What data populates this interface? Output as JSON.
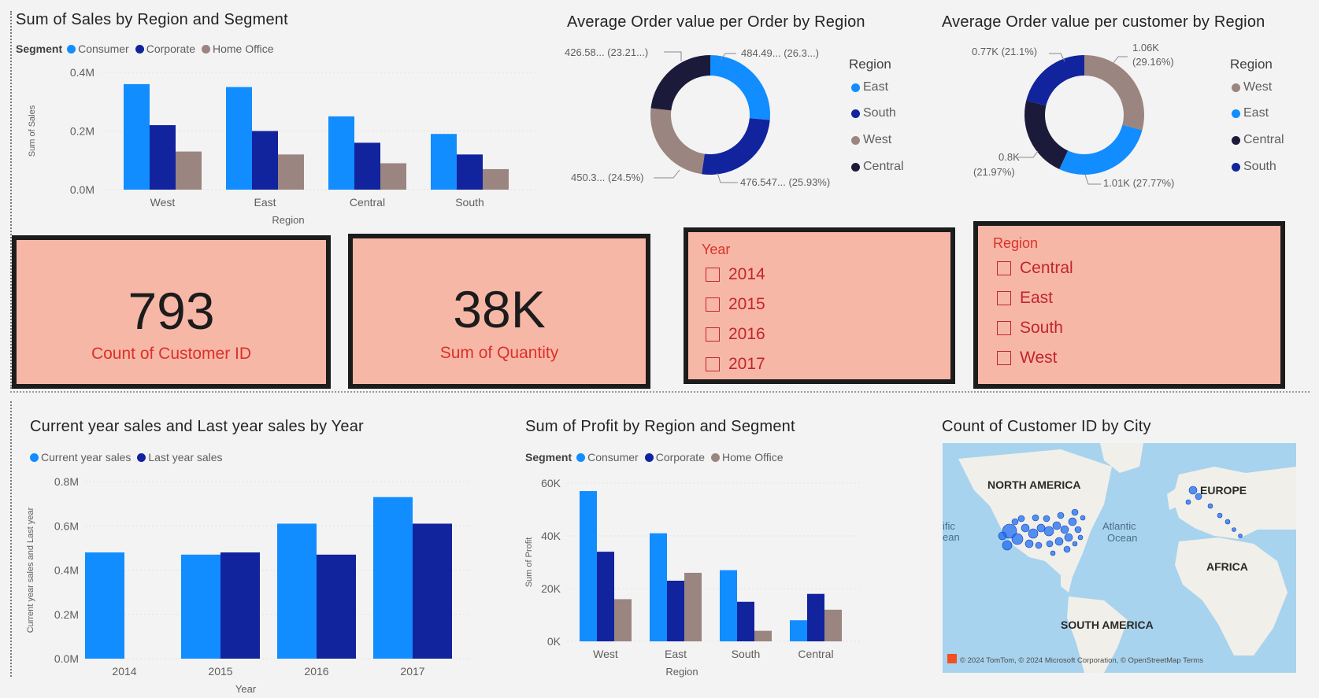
{
  "colors": {
    "consumer": "#118dff",
    "corporate": "#12239e",
    "home_office": "#9b8580",
    "central": "#1c1a3a",
    "current_year": "#118dff",
    "last_year": "#12239e",
    "card_bg": "#f7b7a7",
    "card_text_red": "#d9322a"
  },
  "sales_chart": {
    "title": "Sum of Sales by Region and Segment",
    "legend_label": "Segment",
    "legend": [
      "Consumer",
      "Corporate",
      "Home Office"
    ],
    "y_ticks": [
      "0.4M",
      "0.2M",
      "0.0M"
    ],
    "y_label": "Sum of Sales",
    "x_label": "Region"
  },
  "aov_order_chart": {
    "title": "Average Order value per Order by Region",
    "legend_title": "Region",
    "legend": [
      "East",
      "South",
      "West",
      "Central"
    ],
    "labels": {
      "top_left": "426.58... (23.21...)",
      "top_right": "484.49... (26.3...)",
      "bottom_left": "450.3... (24.5%)",
      "bottom_right": "476.547... (25.93%)"
    }
  },
  "aov_customer_chart": {
    "title": "Average Order value per customer by Region",
    "legend_title": "Region",
    "legend": [
      "West",
      "East",
      "Central",
      "South"
    ],
    "labels": {
      "top_left": "0.77K (21.1%)",
      "top_right_1": "1.06K",
      "top_right_2": "(29.16%)",
      "left_1": "0.8K",
      "left_2": "(21.97%)",
      "bottom_right": "1.01K (27.77%)"
    }
  },
  "cards": {
    "customers": {
      "value": "793",
      "label": "Count of Customer ID"
    },
    "quantity": {
      "value": "38K",
      "label": "Sum of Quantity"
    }
  },
  "slicer_year": {
    "title": "Year",
    "items": [
      "2014",
      "2015",
      "2016",
      "2017"
    ]
  },
  "slicer_region": {
    "title": "Region",
    "items": [
      "Central",
      "East",
      "South",
      "West"
    ]
  },
  "yoy_chart": {
    "title": "Current year sales and Last year sales by Year",
    "legend": [
      "Current year sales",
      "Last year sales"
    ],
    "y_ticks": [
      "0.8M",
      "0.6M",
      "0.4M",
      "0.2M",
      "0.0M"
    ],
    "y_label": "Current year sales and Last year",
    "x_label": "Year"
  },
  "profit_chart": {
    "title": "Sum of Profit by Region and Segment",
    "legend_label": "Segment",
    "legend": [
      "Consumer",
      "Corporate",
      "Home Office"
    ],
    "y_ticks": [
      "60K",
      "40K",
      "20K",
      "0K"
    ],
    "y_label": "Sum of Profit",
    "x_label": "Region"
  },
  "map_chart": {
    "title": "Count of Customer ID by City",
    "labels": {
      "north_america": "NORTH AMERICA",
      "europe": "EUROPE",
      "africa": "AFRICA",
      "south_america": "SOUTH AMERICA",
      "atlantic_1": "Atlantic",
      "atlantic_2": "Ocean",
      "pacific_1": "ific",
      "pacific_2": "ean"
    },
    "attribution": "© 2024 TomTom, © 2024 Microsoft Corporation, © OpenStreetMap  Terms"
  },
  "chart_data": [
    {
      "type": "bar",
      "title": "Sum of Sales by Region and Segment",
      "xlabel": "Region",
      "ylabel": "Sum of Sales",
      "ylim": [
        0,
        0.4
      ],
      "categories": [
        "West",
        "East",
        "Central",
        "South"
      ],
      "series": [
        {
          "name": "Consumer",
          "values": [
            0.36,
            0.35,
            0.25,
            0.19
          ]
        },
        {
          "name": "Corporate",
          "values": [
            0.22,
            0.2,
            0.16,
            0.12
          ]
        },
        {
          "name": "Home Office",
          "values": [
            0.13,
            0.12,
            0.09,
            0.07
          ]
        }
      ]
    },
    {
      "type": "pie",
      "title": "Average Order value per Order by Region",
      "categories": [
        "East",
        "South",
        "West",
        "Central"
      ],
      "values": [
        484.49,
        476.547,
        450.3,
        426.58
      ]
    },
    {
      "type": "pie",
      "title": "Average Order value per customer by Region",
      "categories": [
        "West",
        "East",
        "Central",
        "South"
      ],
      "values": [
        1.06,
        1.01,
        0.8,
        0.77
      ]
    },
    {
      "type": "bar",
      "title": "Current year sales and Last year sales by Year",
      "xlabel": "Year",
      "ylabel": "Current year sales and Last year",
      "ylim": [
        0,
        0.8
      ],
      "categories": [
        "2014",
        "2015",
        "2016",
        "2017"
      ],
      "series": [
        {
          "name": "Current year sales",
          "values": [
            0.48,
            0.47,
            0.61,
            0.73
          ]
        },
        {
          "name": "Last year sales",
          "values": [
            null,
            0.48,
            0.47,
            0.61
          ]
        }
      ]
    },
    {
      "type": "bar",
      "title": "Sum of Profit by Region and Segment",
      "xlabel": "Region",
      "ylabel": "Sum of Profit",
      "ylim": [
        0,
        60
      ],
      "categories": [
        "West",
        "East",
        "South",
        "Central"
      ],
      "series": [
        {
          "name": "Consumer",
          "values": [
            57,
            41,
            27,
            8
          ]
        },
        {
          "name": "Corporate",
          "values": [
            34,
            23,
            15,
            18
          ]
        },
        {
          "name": "Home Office",
          "values": [
            16,
            26,
            4,
            12
          ]
        }
      ]
    }
  ]
}
